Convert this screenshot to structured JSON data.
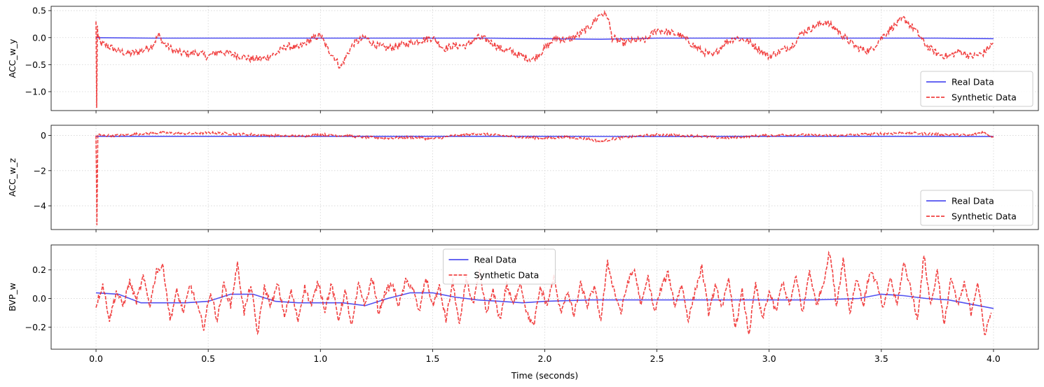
{
  "chart_data": [
    {
      "type": "line",
      "ylabel": "ACC_w_y",
      "xlabel": "",
      "xlim": [
        -0.2,
        4.2
      ],
      "ylim": [
        -1.35,
        0.58
      ],
      "xticks": [
        "0.0",
        "0.5",
        "1.0",
        "1.5",
        "2.0",
        "2.5",
        "3.0",
        "3.5",
        "4.0"
      ],
      "yticks": [
        {
          "v": 0.5,
          "t": "0.5"
        },
        {
          "v": 0.0,
          "t": "0.0"
        },
        {
          "v": -0.5,
          "t": "−0.5"
        },
        {
          "v": -1.0,
          "t": "−1.0"
        }
      ],
      "grid": true,
      "show_xtick_labels": false,
      "legend_position": "lower-right",
      "series": [
        {
          "name": "Real Data",
          "color": "#3333ee",
          "style": "solid",
          "x": [
            0,
            0.25,
            0.5,
            0.75,
            1.0,
            1.25,
            1.5,
            1.75,
            2.0,
            2.25,
            2.5,
            2.75,
            3.0,
            3.25,
            3.5,
            3.75,
            4.0
          ],
          "y": [
            0.0,
            -0.01,
            -0.01,
            -0.01,
            -0.01,
            -0.01,
            -0.01,
            -0.01,
            -0.02,
            -0.03,
            -0.01,
            -0.01,
            -0.01,
            -0.01,
            -0.01,
            -0.01,
            -0.02
          ]
        },
        {
          "name": "Synthetic Data",
          "color": "#ee2222",
          "style": "dashed",
          "x": [
            0.0,
            0.003,
            0.006,
            0.01,
            0.02,
            0.05,
            0.1,
            0.15,
            0.2,
            0.25,
            0.28,
            0.3,
            0.35,
            0.4,
            0.45,
            0.5,
            0.55,
            0.6,
            0.65,
            0.7,
            0.75,
            0.8,
            0.85,
            0.9,
            0.95,
            1.0,
            1.03,
            1.06,
            1.09,
            1.12,
            1.15,
            1.2,
            1.25,
            1.3,
            1.35,
            1.4,
            1.45,
            1.5,
            1.55,
            1.6,
            1.65,
            1.7,
            1.75,
            1.8,
            1.85,
            1.9,
            1.95,
            2.0,
            2.05,
            2.1,
            2.15,
            2.2,
            2.25,
            2.28,
            2.3,
            2.35,
            2.4,
            2.45,
            2.5,
            2.55,
            2.6,
            2.65,
            2.7,
            2.75,
            2.8,
            2.85,
            2.9,
            2.95,
            3.0,
            3.05,
            3.1,
            3.15,
            3.2,
            3.25,
            3.3,
            3.35,
            3.4,
            3.45,
            3.5,
            3.55,
            3.6,
            3.65,
            3.7,
            3.75,
            3.8,
            3.85,
            3.9,
            3.95,
            4.0
          ],
          "y": [
            0.3,
            -1.3,
            0.2,
            0.0,
            -0.1,
            -0.15,
            -0.25,
            -0.3,
            -0.25,
            -0.15,
            0.05,
            -0.1,
            -0.25,
            -0.3,
            -0.28,
            -0.35,
            -0.25,
            -0.3,
            -0.35,
            -0.4,
            -0.38,
            -0.3,
            -0.15,
            -0.2,
            -0.05,
            0.05,
            -0.2,
            -0.35,
            -0.55,
            -0.3,
            -0.1,
            0.0,
            -0.15,
            -0.2,
            -0.15,
            -0.1,
            -0.05,
            0.0,
            -0.2,
            -0.15,
            -0.15,
            0.0,
            -0.05,
            -0.2,
            -0.25,
            -0.35,
            -0.4,
            -0.2,
            0.0,
            -0.05,
            0.05,
            0.2,
            0.45,
            0.4,
            0.0,
            -0.1,
            -0.05,
            -0.05,
            0.15,
            0.1,
            0.05,
            -0.1,
            -0.25,
            -0.35,
            -0.1,
            0.0,
            -0.05,
            -0.2,
            -0.35,
            -0.25,
            -0.15,
            0.1,
            0.2,
            0.3,
            0.15,
            -0.05,
            -0.2,
            -0.25,
            0.0,
            0.2,
            0.35,
            0.15,
            -0.15,
            -0.3,
            -0.35,
            -0.25,
            -0.35,
            -0.3,
            -0.1
          ]
        }
      ]
    },
    {
      "type": "line",
      "ylabel": "ACC_w_z",
      "xlabel": "",
      "xlim": [
        -0.2,
        4.2
      ],
      "ylim": [
        -5.35,
        0.58
      ],
      "xticks": [
        "0.0",
        "0.5",
        "1.0",
        "1.5",
        "2.0",
        "2.5",
        "3.0",
        "3.5",
        "4.0"
      ],
      "yticks": [
        {
          "v": 0,
          "t": "0"
        },
        {
          "v": -2,
          "t": "−2"
        },
        {
          "v": -4,
          "t": "−4"
        }
      ],
      "grid": true,
      "show_xtick_labels": false,
      "legend_position": "lower-right",
      "series": [
        {
          "name": "Real Data",
          "color": "#3333ee",
          "style": "solid",
          "x": [
            0,
            0.5,
            1.0,
            1.5,
            2.0,
            2.5,
            3.0,
            3.5,
            4.0
          ],
          "y": [
            -0.05,
            -0.05,
            -0.05,
            -0.05,
            -0.05,
            -0.06,
            -0.05,
            -0.05,
            -0.06
          ]
        },
        {
          "name": "Synthetic Data",
          "color": "#ee2222",
          "style": "dashed",
          "x": [
            0.0,
            0.004,
            0.008,
            0.02,
            0.1,
            0.2,
            0.3,
            0.4,
            0.5,
            0.6,
            0.7,
            0.8,
            0.9,
            1.0,
            1.1,
            1.2,
            1.3,
            1.4,
            1.5,
            1.6,
            1.7,
            1.8,
            1.9,
            2.0,
            2.1,
            2.2,
            2.25,
            2.3,
            2.4,
            2.5,
            2.6,
            2.7,
            2.8,
            2.9,
            3.0,
            3.1,
            3.2,
            3.3,
            3.4,
            3.5,
            3.6,
            3.7,
            3.8,
            3.9,
            3.95,
            4.0
          ],
          "y": [
            0.0,
            -5.1,
            0.1,
            0.0,
            0.0,
            0.1,
            0.15,
            0.1,
            0.15,
            0.1,
            0.05,
            0.0,
            -0.05,
            0.05,
            0.0,
            -0.1,
            -0.15,
            -0.1,
            -0.2,
            0.0,
            0.1,
            0.0,
            -0.1,
            -0.15,
            -0.1,
            -0.2,
            -0.35,
            -0.2,
            -0.05,
            0.05,
            0.0,
            -0.05,
            -0.15,
            -0.05,
            0.0,
            0.05,
            0.0,
            0.0,
            0.05,
            0.1,
            0.15,
            0.1,
            0.05,
            0.0,
            0.2,
            -0.1
          ]
        }
      ]
    },
    {
      "type": "line",
      "ylabel": "BVP_w",
      "xlabel": "Time (seconds)",
      "xlim": [
        -0.2,
        4.2
      ],
      "ylim": [
        -0.355,
        0.375
      ],
      "xticks": [
        "0.0",
        "0.5",
        "1.0",
        "1.5",
        "2.0",
        "2.5",
        "3.0",
        "3.5",
        "4.0"
      ],
      "yticks": [
        {
          "v": 0.2,
          "t": "0.2"
        },
        {
          "v": 0.0,
          "t": "0.0"
        },
        {
          "v": -0.2,
          "t": "−0.2"
        }
      ],
      "grid": true,
      "show_xtick_labels": true,
      "legend_position": "upper-center",
      "series": [
        {
          "name": "Real Data",
          "color": "#3333ee",
          "style": "solid",
          "x": [
            0.0,
            0.1,
            0.2,
            0.3,
            0.4,
            0.5,
            0.6,
            0.7,
            0.8,
            0.9,
            1.0,
            1.1,
            1.2,
            1.3,
            1.4,
            1.5,
            1.6,
            1.7,
            1.8,
            1.9,
            2.0,
            2.2,
            2.4,
            2.6,
            2.8,
            3.0,
            3.2,
            3.4,
            3.5,
            3.6,
            3.7,
            3.8,
            3.9,
            4.0
          ],
          "y": [
            0.04,
            0.03,
            -0.03,
            -0.03,
            -0.03,
            -0.02,
            0.03,
            0.03,
            -0.02,
            -0.03,
            -0.03,
            -0.03,
            -0.05,
            0.0,
            0.04,
            0.04,
            0.01,
            -0.01,
            -0.02,
            -0.03,
            -0.02,
            -0.01,
            -0.01,
            -0.01,
            -0.01,
            -0.01,
            -0.01,
            0.0,
            0.03,
            0.02,
            0.0,
            -0.01,
            -0.04,
            -0.07
          ]
        },
        {
          "name": "Synthetic Data",
          "color": "#ee2222",
          "style": "dashed",
          "x": [
            0.0,
            0.03,
            0.06,
            0.09,
            0.12,
            0.15,
            0.18,
            0.21,
            0.24,
            0.27,
            0.3,
            0.33,
            0.36,
            0.39,
            0.42,
            0.45,
            0.48,
            0.51,
            0.54,
            0.57,
            0.6,
            0.63,
            0.66,
            0.69,
            0.72,
            0.75,
            0.78,
            0.81,
            0.84,
            0.87,
            0.9,
            0.93,
            0.96,
            0.99,
            1.02,
            1.05,
            1.08,
            1.11,
            1.14,
            1.17,
            1.2,
            1.23,
            1.26,
            1.29,
            1.32,
            1.35,
            1.38,
            1.41,
            1.44,
            1.47,
            1.5,
            1.53,
            1.56,
            1.59,
            1.62,
            1.65,
            1.68,
            1.71,
            1.74,
            1.77,
            1.8,
            1.83,
            1.86,
            1.89,
            1.92,
            1.95,
            1.98,
            2.01,
            2.04,
            2.07,
            2.1,
            2.13,
            2.16,
            2.19,
            2.22,
            2.25,
            2.28,
            2.31,
            2.34,
            2.37,
            2.4,
            2.43,
            2.46,
            2.49,
            2.52,
            2.55,
            2.58,
            2.61,
            2.64,
            2.67,
            2.7,
            2.73,
            2.76,
            2.79,
            2.82,
            2.85,
            2.88,
            2.91,
            2.94,
            2.97,
            3.0,
            3.03,
            3.06,
            3.09,
            3.12,
            3.15,
            3.18,
            3.21,
            3.24,
            3.27,
            3.3,
            3.33,
            3.36,
            3.39,
            3.42,
            3.45,
            3.48,
            3.51,
            3.54,
            3.57,
            3.6,
            3.63,
            3.66,
            3.69,
            3.72,
            3.75,
            3.78,
            3.81,
            3.84,
            3.87,
            3.9,
            3.93,
            3.96,
            3.99
          ],
          "y": [
            -0.05,
            0.1,
            -0.15,
            0.05,
            -0.05,
            0.12,
            -0.02,
            0.15,
            -0.05,
            0.2,
            0.22,
            -0.15,
            0.05,
            -0.1,
            0.1,
            -0.05,
            -0.2,
            0.05,
            -0.15,
            0.1,
            -0.05,
            0.24,
            -0.1,
            0.1,
            -0.25,
            0.08,
            -0.05,
            0.1,
            -0.12,
            0.05,
            -0.15,
            0.08,
            -0.05,
            0.12,
            -0.08,
            0.1,
            -0.15,
            0.05,
            -0.2,
            0.1,
            -0.05,
            0.15,
            -0.1,
            0.05,
            0.1,
            -0.05,
            0.12,
            0.08,
            -0.1,
            0.15,
            -0.05,
            0.08,
            -0.15,
            0.12,
            -0.2,
            0.15,
            -0.05,
            0.18,
            -0.1,
            0.05,
            -0.15,
            0.1,
            -0.05,
            0.12,
            -0.1,
            -0.2,
            0.08,
            -0.05,
            0.15,
            -0.1,
            0.05,
            -0.12,
            0.1,
            -0.05,
            0.08,
            -0.15,
            0.25,
            0.05,
            -0.1,
            0.12,
            0.2,
            -0.05,
            0.15,
            -0.1,
            0.08,
            0.18,
            -0.05,
            0.1,
            -0.15,
            0.05,
            0.22,
            -0.1,
            0.08,
            -0.05,
            0.12,
            -0.2,
            0.05,
            -0.25,
            0.1,
            -0.15,
            0.05,
            -0.1,
            0.12,
            -0.05,
            0.15,
            -0.1,
            0.2,
            -0.05,
            0.1,
            0.33,
            -0.05,
            0.28,
            -0.1,
            0.15,
            -0.05,
            0.2,
            0.1,
            -0.08,
            0.15,
            -0.05,
            0.25,
            0.08,
            -0.15,
            0.3,
            -0.05,
            0.2,
            -0.2,
            0.15,
            -0.05,
            0.1,
            -0.1,
            0.12,
            -0.25,
            -0.1
          ]
        }
      ]
    }
  ]
}
